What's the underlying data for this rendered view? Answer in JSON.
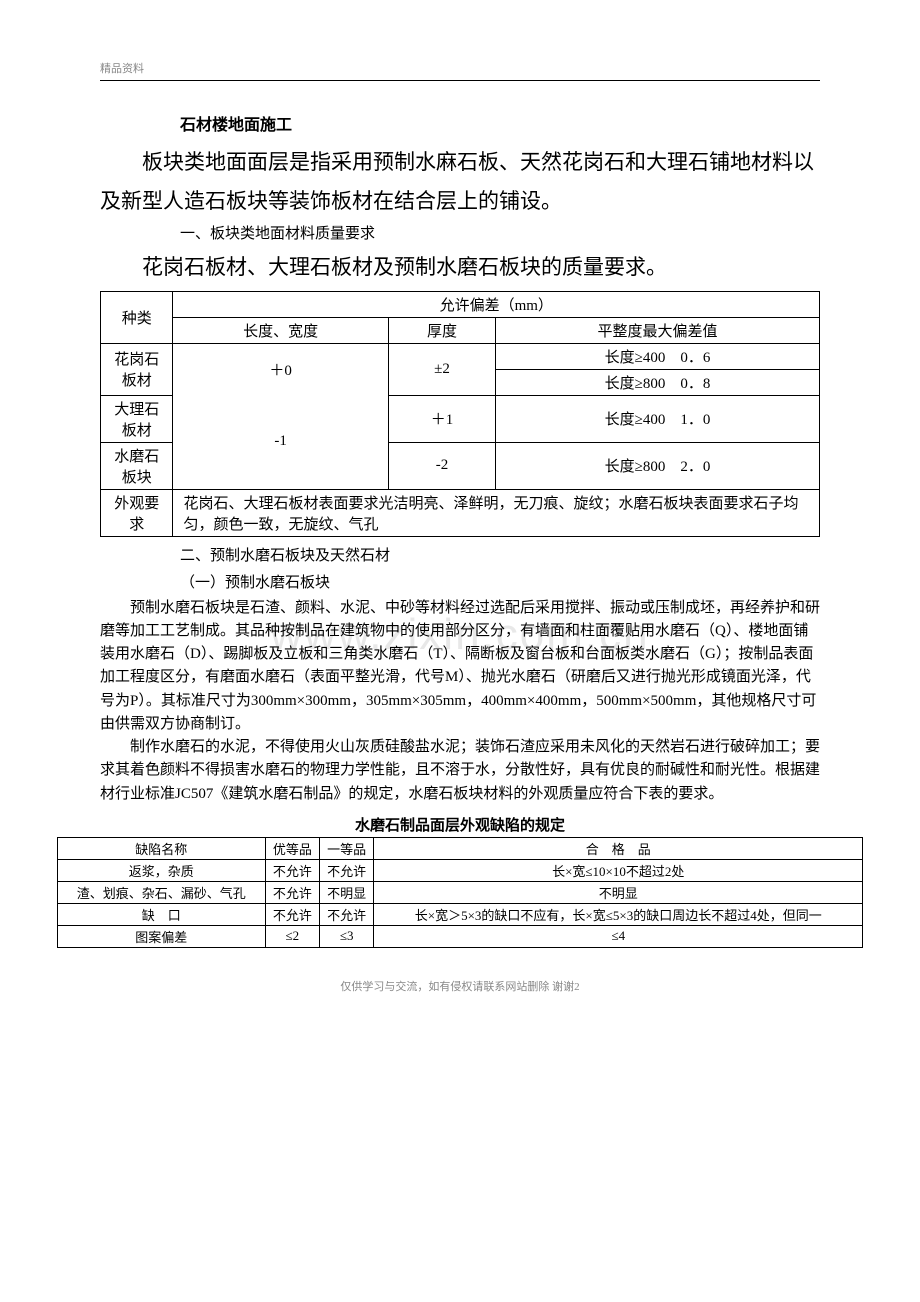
{
  "header": {
    "label": "精品资料"
  },
  "section1": {
    "title": "石材楼地面施工",
    "para1": "板块类地面面层是指采用预制水麻石板、天然花岗石和大理石铺地材料以及新型人造石板块等装饰板材在结合层上的铺设。",
    "sub1": "一、板块类地面材料质量要求",
    "para2": "花岗石板材、大理石板材及预制水磨石板块的质量要求。"
  },
  "table1": {
    "header": {
      "type": "种类",
      "tolerance": "允许偏差（mm）",
      "length_width": "长度、宽度",
      "thickness": "厚度",
      "flatness": "平整度最大偏差值"
    },
    "rows": {
      "r1_label": "花岗石板材",
      "r1_lw_top": "＋0",
      "r1_lw_bot": "-1",
      "r1_thick": "±2",
      "r1_flat_a": "长度≥400　0．6",
      "r1_flat_b": "长度≥800　0．8",
      "r2_label": "大理石板材",
      "r2_thick": "＋1",
      "r2_flat": "长度≥400　1．0",
      "r3_label": "水磨石板块",
      "r3_thick": "-2",
      "r3_flat": "长度≥800　2．0",
      "r4_label": "外观要求",
      "r4_text": "花岗石、大理石板材表面要求光洁明亮、泽鲜明，无刀痕、旋纹；水磨石板块表面要求石子均匀，颜色一致，无旋纹、气孔"
    }
  },
  "section2": {
    "sub2": "二、预制水磨石板块及天然石材",
    "sub2a": "（一）预制水磨石板块",
    "para3": "预制水磨石板块是石渣、颜料、水泥、中砂等材料经过选配后采用搅拌、振动或压制成坯，再经养护和研磨等加工工艺制成。其品种按制品在建筑物中的使用部分区分，有墙面和柱面覆贴用水磨石（Q）、楼地面铺装用水磨石（D）、踢脚板及立板和三角类水磨石（T）、隔断板及窗台板和台面板类水磨石（G）；按制品表面加工程度区分，有磨面水磨石（表面平整光滑，代号M）、抛光水磨石（研磨后又进行抛光形成镜面光泽，代号为P）。其标准尺寸为300mm×300mm，305mm×305mm，400mm×400mm，500mm×500mm，其他规格尺寸可由供需双方协商制订。",
    "para4": "制作水磨石的水泥，不得使用火山灰质硅酸盐水泥；装饰石渣应采用未风化的天然岩石进行破碎加工；要求其着色颜料不得损害水磨石的物理力学性能，且不溶于水，分散性好，具有优良的耐碱性和耐光性。根据建材行业标准JC507《建筑水磨石制品》的规定，水磨石板块材料的外观质量应符合下表的要求。"
  },
  "table2": {
    "title": "水磨石制品面层外观缺陷的规定",
    "header": {
      "defect": "缺陷名称",
      "grade_a": "优等品",
      "grade_b": "一等品",
      "grade_c": "合　格　品"
    },
    "rows": {
      "r1_c1": "返浆，杂质",
      "r1_c2": "不允许",
      "r1_c3": "不允许",
      "r1_c4": "长×宽≤10×10不超过2处",
      "r2_c1": "渣、划痕、杂石、漏砂、气孔",
      "r2_c2": "不允许",
      "r2_c3": "不明显",
      "r2_c4": "不明显",
      "r3_c1": "缺　口",
      "r3_c2": "不允许",
      "r3_c3": "不允许",
      "r3_c4": "长×宽＞5×3的缺口不应有，长×宽≤5×3的缺口周边长不超过4处，但同一",
      "r4_c1": "图案偏差",
      "r4_c2": "≤2",
      "r4_c3": "≤3",
      "r4_c4": "≤4"
    }
  },
  "watermark": "www.zixin.com.cn",
  "footer": {
    "text": "仅供学习与交流，如有侵权请联系网站删除 谢谢",
    "page": "2"
  }
}
